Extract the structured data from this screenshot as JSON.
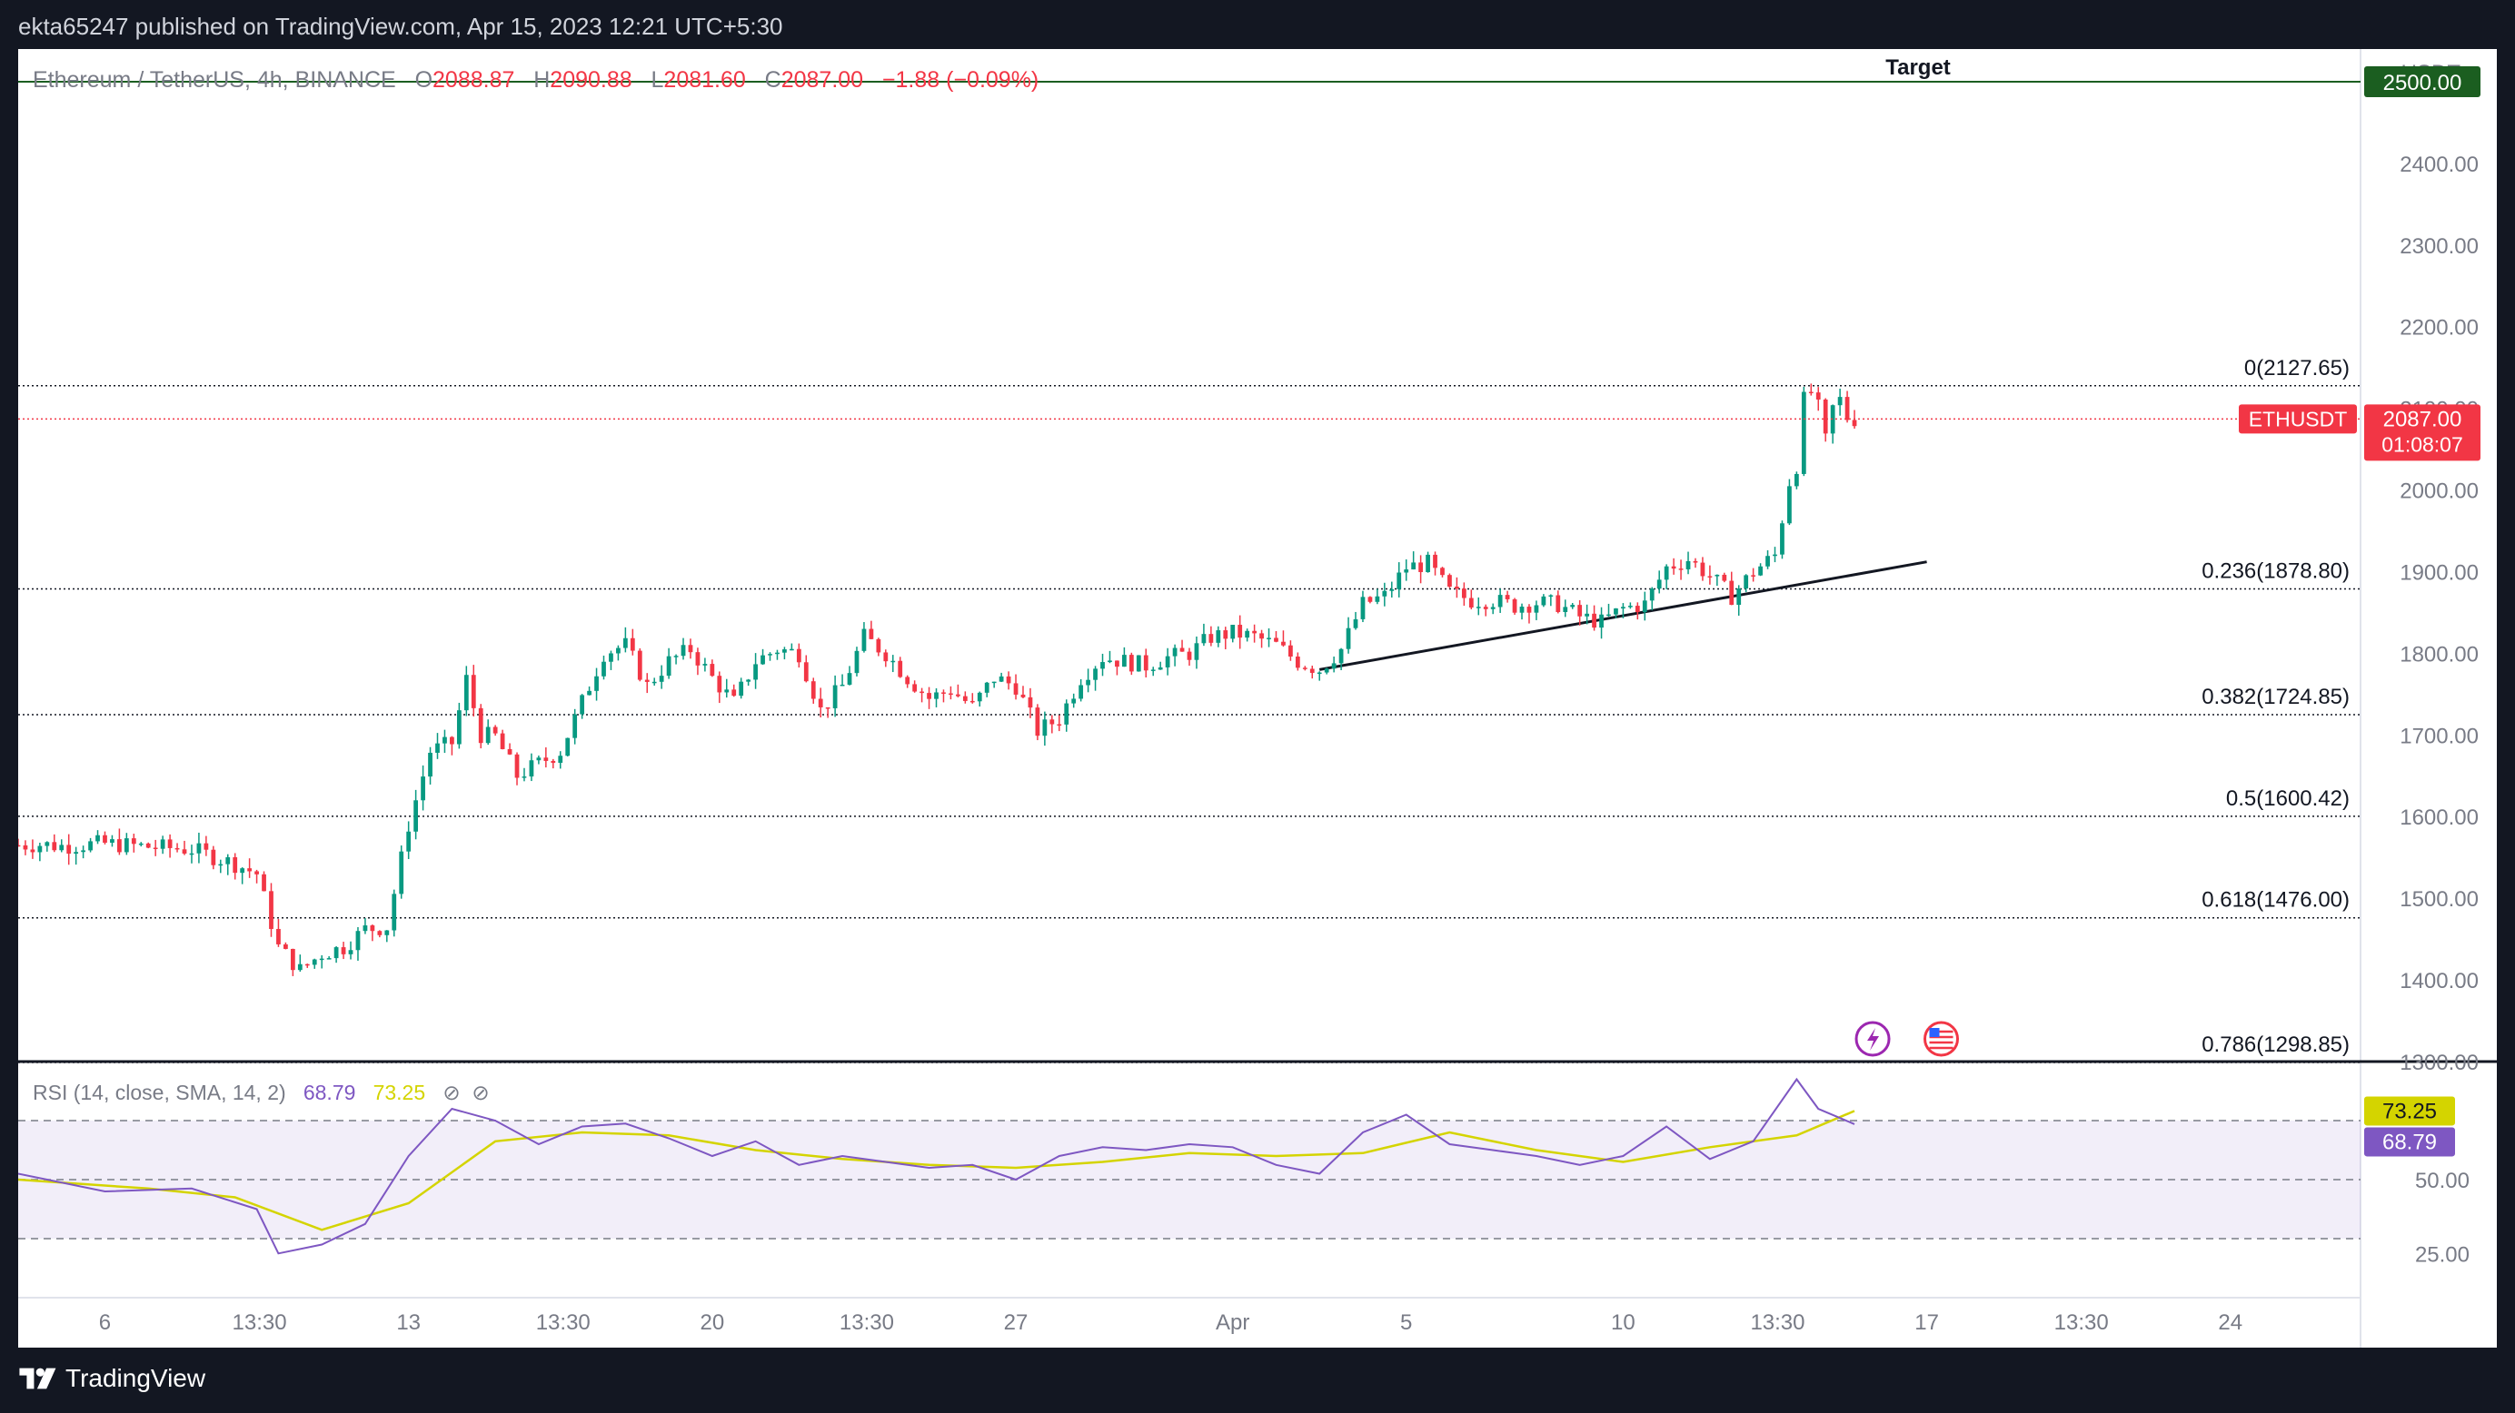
{
  "publisher": "ekta65247 published on TradingView.com, Apr 15, 2023 12:21 UTC+5:30",
  "brand": "TradingView",
  "symbol": {
    "title": "Ethereum / TetherUS, 4h, BINANCE",
    "open_label": "O",
    "open": "2088.87",
    "high_label": "H",
    "high": "2090.88",
    "low_label": "L",
    "low": "2081.60",
    "close_label": "C",
    "close": "2087.00",
    "change": "−1.88 (−0.09%)"
  },
  "rsi": {
    "label": "RSI (14, close, SMA, 14, 2)",
    "value": "68.79",
    "sma": "73.25",
    "hidden_icons": [
      "eye-off-icon",
      "eye-off-icon"
    ]
  },
  "colors": {
    "up": "#089981",
    "down": "#f23645",
    "rsi": "#7e57c2",
    "rsi_sma": "#d4d400",
    "target": "#1b5e20",
    "panel_bg": "#ffffff",
    "frame_bg": "#131722"
  },
  "chart_data": {
    "type": "candlestick",
    "title": "Ethereum / TetherUS, 4h, BINANCE",
    "y_unit": "USDT",
    "ylim": [
      1300,
      2540
    ],
    "y_ticks": [
      1300,
      1400,
      1500,
      1600,
      1700,
      1800,
      1900,
      2000,
      2100,
      2200,
      2300,
      2400
    ],
    "y_tick_labels": [
      "1300.00",
      "1400.00",
      "1500.00",
      "1600.00",
      "1700.00",
      "1800.00",
      "1900.00",
      "2000.00",
      "2100.00",
      "2200.00",
      "2300.00",
      "2400.00"
    ],
    "x_range": [
      "2023-03-04",
      "2023-04-27"
    ],
    "x_ticks": [
      {
        "date": "2023-03-06T00:00",
        "label": "6"
      },
      {
        "date": "2023-03-09T13:30",
        "label": "13:30"
      },
      {
        "date": "2023-03-13T00:00",
        "label": "13"
      },
      {
        "date": "2023-03-16T13:30",
        "label": "13:30"
      },
      {
        "date": "2023-03-20T00:00",
        "label": "20"
      },
      {
        "date": "2023-03-23T13:30",
        "label": "13:30"
      },
      {
        "date": "2023-03-27T00:00",
        "label": "27"
      },
      {
        "date": "2023-04-01T00:00",
        "label": "Apr"
      },
      {
        "date": "2023-04-05T00:00",
        "label": "5"
      },
      {
        "date": "2023-04-10T00:00",
        "label": "10"
      },
      {
        "date": "2023-04-13T13:30",
        "label": "13:30"
      },
      {
        "date": "2023-04-17T00:00",
        "label": "17"
      },
      {
        "date": "2023-04-20T13:30",
        "label": "13:30"
      },
      {
        "date": "2023-04-24T00:00",
        "label": "24"
      }
    ],
    "price_path": [
      [
        "2023-03-04T00:00",
        1565
      ],
      [
        "2023-03-04T12:00",
        1566
      ],
      [
        "2023-03-05T00:00",
        1564
      ],
      [
        "2023-03-06T00:00",
        1567
      ],
      [
        "2023-03-07T00:00",
        1563
      ],
      [
        "2023-03-08T00:00",
        1560
      ],
      [
        "2023-03-09T00:00",
        1542
      ],
      [
        "2023-03-09T12:00",
        1530
      ],
      [
        "2023-03-10T00:00",
        1440
      ],
      [
        "2023-03-10T12:00",
        1412
      ],
      [
        "2023-03-11T00:00",
        1432
      ],
      [
        "2023-03-11T12:00",
        1440
      ],
      [
        "2023-03-12T00:00",
        1462
      ],
      [
        "2023-03-12T12:00",
        1465
      ],
      [
        "2023-03-13T00:00",
        1590
      ],
      [
        "2023-03-13T12:00",
        1680
      ],
      [
        "2023-03-14T00:00",
        1690
      ],
      [
        "2023-03-14T08:00",
        1768
      ],
      [
        "2023-03-14T16:00",
        1700
      ],
      [
        "2023-03-15T00:00",
        1698
      ],
      [
        "2023-03-15T12:00",
        1650
      ],
      [
        "2023-03-16T00:00",
        1665
      ],
      [
        "2023-03-16T12:00",
        1680
      ],
      [
        "2023-03-17T00:00",
        1740
      ],
      [
        "2023-03-17T12:00",
        1800
      ],
      [
        "2023-03-18T00:00",
        1810
      ],
      [
        "2023-03-18T12:00",
        1760
      ],
      [
        "2023-03-19T00:00",
        1790
      ],
      [
        "2023-03-19T12:00",
        1805
      ],
      [
        "2023-03-20T00:00",
        1770
      ],
      [
        "2023-03-20T12:00",
        1740
      ],
      [
        "2023-03-21T00:00",
        1790
      ],
      [
        "2023-03-21T12:00",
        1805
      ],
      [
        "2023-03-22T00:00",
        1800
      ],
      [
        "2023-03-22T12:00",
        1730
      ],
      [
        "2023-03-23T00:00",
        1760
      ],
      [
        "2023-03-23T12:00",
        1820
      ],
      [
        "2023-03-24T00:00",
        1800
      ],
      [
        "2023-03-24T12:00",
        1770
      ],
      [
        "2023-03-25T00:00",
        1745
      ],
      [
        "2023-03-25T12:00",
        1755
      ],
      [
        "2023-03-26T00:00",
        1735
      ],
      [
        "2023-03-26T12:00",
        1770
      ],
      [
        "2023-03-27T00:00",
        1760
      ],
      [
        "2023-03-27T12:00",
        1705
      ],
      [
        "2023-03-28T00:00",
        1720
      ],
      [
        "2023-03-28T12:00",
        1770
      ],
      [
        "2023-03-29T00:00",
        1795
      ],
      [
        "2023-03-29T12:00",
        1790
      ],
      [
        "2023-03-30T00:00",
        1785
      ],
      [
        "2023-03-30T12:00",
        1795
      ],
      [
        "2023-03-31T00:00",
        1800
      ],
      [
        "2023-03-31T12:00",
        1820
      ],
      [
        "2023-04-01T00:00",
        1825
      ],
      [
        "2023-04-01T12:00",
        1820
      ],
      [
        "2023-04-02T00:00",
        1810
      ],
      [
        "2023-04-02T12:00",
        1790
      ],
      [
        "2023-04-03T00:00",
        1780
      ],
      [
        "2023-04-03T12:00",
        1805
      ],
      [
        "2023-04-04T00:00",
        1860
      ],
      [
        "2023-04-04T12:00",
        1870
      ],
      [
        "2023-04-05T00:00",
        1905
      ],
      [
        "2023-04-05T12:00",
        1910
      ],
      [
        "2023-04-06T00:00",
        1875
      ],
      [
        "2023-04-06T12:00",
        1865
      ],
      [
        "2023-04-07T00:00",
        1865
      ],
      [
        "2023-04-07T12:00",
        1858
      ],
      [
        "2023-04-08T00:00",
        1862
      ],
      [
        "2023-04-08T12:00",
        1860
      ],
      [
        "2023-04-09T00:00",
        1845
      ],
      [
        "2023-04-09T12:00",
        1838
      ],
      [
        "2023-04-10T00:00",
        1855
      ],
      [
        "2023-04-10T12:00",
        1860
      ],
      [
        "2023-04-11T00:00",
        1905
      ],
      [
        "2023-04-11T12:00",
        1915
      ],
      [
        "2023-04-12T00:00",
        1895
      ],
      [
        "2023-04-12T12:00",
        1870
      ],
      [
        "2023-04-13T00:00",
        1900
      ],
      [
        "2023-04-13T12:00",
        1920
      ],
      [
        "2023-04-13T20:00",
        2010
      ],
      [
        "2023-04-14T00:00",
        2030
      ],
      [
        "2023-04-14T04:00",
        2110
      ],
      [
        "2023-04-14T08:00",
        2120
      ],
      [
        "2023-04-14T12:00",
        2100
      ],
      [
        "2023-04-14T16:00",
        2060
      ],
      [
        "2023-04-14T20:00",
        2100
      ],
      [
        "2023-04-15T00:00",
        2110
      ],
      [
        "2023-04-15T04:00",
        2089
      ],
      [
        "2023-04-15T08:00",
        2087
      ]
    ],
    "current_price": {
      "symbol": "ETHUSDT",
      "value": "2087.00",
      "countdown": "01:08:07"
    },
    "target": {
      "label": "Target",
      "value": "2500.00"
    },
    "fib_levels": [
      {
        "ratio": "0",
        "price": 2127.65,
        "label": "0(2127.65)"
      },
      {
        "ratio": "0.236",
        "price": 1878.8,
        "label": "0.236(1878.80)"
      },
      {
        "ratio": "0.382",
        "price": 1724.85,
        "label": "0.382(1724.85)"
      },
      {
        "ratio": "0.5",
        "price": 1600.42,
        "label": "0.5(1600.42)"
      },
      {
        "ratio": "0.618",
        "price": 1476.0,
        "label": "0.618(1476.00)"
      },
      {
        "ratio": "0.786",
        "price": 1298.85,
        "label": "0.786(1298.85)"
      }
    ],
    "trendline": [
      [
        "2023-04-03T00:00",
        1780
      ],
      [
        "2023-04-17T00:00",
        1912
      ]
    ],
    "rsi_panel": {
      "ylim": [
        10,
        90
      ],
      "y_ticks": [
        25,
        50,
        75
      ],
      "y_tick_labels": [
        "25.00",
        "50.00",
        ""
      ],
      "band": [
        30,
        70
      ],
      "rsi": [
        [
          "2023-03-04",
          52
        ],
        [
          "2023-03-06",
          46
        ],
        [
          "2023-03-08",
          47
        ],
        [
          "2023-03-09T12:00",
          40
        ],
        [
          "2023-03-10",
          25
        ],
        [
          "2023-03-11",
          28
        ],
        [
          "2023-03-12",
          35
        ],
        [
          "2023-03-13",
          58
        ],
        [
          "2023-03-14",
          74
        ],
        [
          "2023-03-15",
          70
        ],
        [
          "2023-03-16",
          62
        ],
        [
          "2023-03-17",
          68
        ],
        [
          "2023-03-18",
          69
        ],
        [
          "2023-03-19",
          64
        ],
        [
          "2023-03-20",
          58
        ],
        [
          "2023-03-21",
          63
        ],
        [
          "2023-03-22",
          55
        ],
        [
          "2023-03-23",
          58
        ],
        [
          "2023-03-24",
          56
        ],
        [
          "2023-03-25",
          54
        ],
        [
          "2023-03-26",
          55
        ],
        [
          "2023-03-27",
          50
        ],
        [
          "2023-03-28",
          58
        ],
        [
          "2023-03-29",
          61
        ],
        [
          "2023-03-30",
          60
        ],
        [
          "2023-03-31",
          62
        ],
        [
          "2023-04-01",
          61
        ],
        [
          "2023-04-02",
          55
        ],
        [
          "2023-04-03",
          52
        ],
        [
          "2023-04-04",
          66
        ],
        [
          "2023-04-05",
          72
        ],
        [
          "2023-04-06",
          62
        ],
        [
          "2023-04-07",
          60
        ],
        [
          "2023-04-08",
          58
        ],
        [
          "2023-04-09",
          55
        ],
        [
          "2023-04-10",
          58
        ],
        [
          "2023-04-11",
          68
        ],
        [
          "2023-04-12",
          57
        ],
        [
          "2023-04-13",
          63
        ],
        [
          "2023-04-14",
          84
        ],
        [
          "2023-04-14T12:00",
          74
        ],
        [
          "2023-04-15T08:00",
          68.79
        ]
      ],
      "rsi_sma": [
        [
          "2023-03-04",
          50
        ],
        [
          "2023-03-07",
          47
        ],
        [
          "2023-03-09",
          44
        ],
        [
          "2023-03-11",
          33
        ],
        [
          "2023-03-13",
          42
        ],
        [
          "2023-03-15",
          63
        ],
        [
          "2023-03-17",
          66
        ],
        [
          "2023-03-19",
          65
        ],
        [
          "2023-03-21",
          60
        ],
        [
          "2023-03-23",
          57
        ],
        [
          "2023-03-25",
          55
        ],
        [
          "2023-03-27",
          54
        ],
        [
          "2023-03-29",
          56
        ],
        [
          "2023-03-31",
          59
        ],
        [
          "2023-04-02",
          58
        ],
        [
          "2023-04-04",
          59
        ],
        [
          "2023-04-06",
          66
        ],
        [
          "2023-04-08",
          60
        ],
        [
          "2023-04-10",
          56
        ],
        [
          "2023-04-12",
          61
        ],
        [
          "2023-04-14",
          65
        ],
        [
          "2023-04-15T08:00",
          73.25
        ]
      ]
    }
  }
}
